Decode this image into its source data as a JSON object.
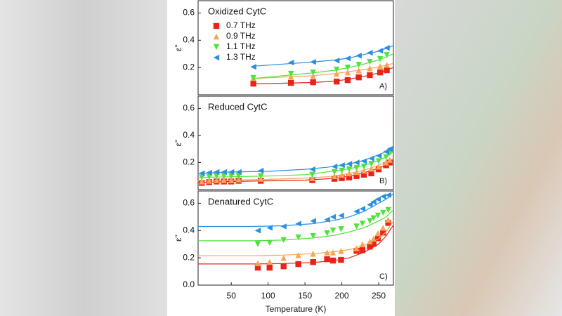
{
  "chart_data": [
    {
      "type": "scatter",
      "title": "Oxidized CytC",
      "panel_label": "A)",
      "ylabel": "ε''",
      "legend": true,
      "xlim": [
        5,
        270
      ],
      "ylim": [
        0,
        0.69
      ],
      "yticks": [
        0.2,
        0.4,
        0.6
      ],
      "x": [
        80,
        131,
        161,
        193,
        208,
        223,
        238,
        252,
        261
      ],
      "fit_x": [
        80,
        120,
        160,
        190,
        210,
        230,
        250,
        270
      ],
      "series": [
        {
          "name": "0.7 THz",
          "color": "#e8231a",
          "marker": "square",
          "values": [
            0.082,
            0.087,
            0.092,
            0.097,
            0.108,
            0.128,
            0.144,
            0.164,
            0.18
          ],
          "fit": [
            0.08,
            0.085,
            0.09,
            0.1,
            0.115,
            0.135,
            0.16,
            0.2
          ]
        },
        {
          "name": "0.9 THz",
          "color": "#f7a456",
          "marker": "up",
          "values": [
            0.123,
            0.133,
            0.138,
            0.154,
            0.164,
            0.179,
            0.195,
            0.21,
            0.22
          ],
          "fit": [
            0.12,
            0.13,
            0.14,
            0.155,
            0.17,
            0.185,
            0.205,
            0.23
          ]
        },
        {
          "name": "1.1 THz",
          "color": "#4fe33a",
          "marker": "down",
          "values": [
            0.123,
            0.154,
            0.164,
            0.185,
            0.2,
            0.22,
            0.241,
            0.262,
            0.292
          ],
          "fit": [
            0.12,
            0.14,
            0.16,
            0.18,
            0.2,
            0.225,
            0.255,
            0.3
          ]
        },
        {
          "name": "1.3 THz",
          "color": "#2b8fe0",
          "marker": "left",
          "values": [
            0.205,
            0.236,
            0.241,
            0.251,
            0.267,
            0.287,
            0.308,
            0.323,
            0.344
          ],
          "fit": [
            0.21,
            0.225,
            0.24,
            0.255,
            0.27,
            0.295,
            0.32,
            0.36
          ]
        }
      ]
    },
    {
      "type": "scatter",
      "title": "Reduced CytC",
      "panel_label": "B)",
      "ylabel": "ε''",
      "xlim": [
        5,
        270
      ],
      "ylim": [
        0,
        0.69
      ],
      "yticks": [
        0.2,
        0.4,
        0.6
      ],
      "x": [
        10,
        20,
        30,
        40,
        50,
        60,
        90,
        160,
        190,
        200,
        210,
        220,
        230,
        240,
        250,
        260,
        265
      ],
      "fit_x": [
        5,
        50,
        100,
        150,
        180,
        200,
        220,
        240,
        260,
        270
      ],
      "series": [
        {
          "color": "#e8231a",
          "marker": "square",
          "values": [
            0.05,
            0.055,
            0.06,
            0.06,
            0.06,
            0.065,
            0.065,
            0.07,
            0.08,
            0.085,
            0.09,
            0.1,
            0.11,
            0.12,
            0.15,
            0.18,
            0.2
          ],
          "fit": [
            0.05,
            0.06,
            0.065,
            0.07,
            0.08,
            0.09,
            0.11,
            0.14,
            0.18,
            0.21
          ]
        },
        {
          "color": "#f7a456",
          "marker": "up",
          "values": [
            0.06,
            0.065,
            0.07,
            0.07,
            0.07,
            0.075,
            0.08,
            0.085,
            0.1,
            0.11,
            0.12,
            0.13,
            0.14,
            0.155,
            0.17,
            0.2,
            0.22
          ],
          "fit": [
            0.065,
            0.07,
            0.075,
            0.085,
            0.095,
            0.11,
            0.13,
            0.16,
            0.2,
            0.23
          ]
        },
        {
          "color": "#4fe33a",
          "marker": "down",
          "values": [
            0.09,
            0.095,
            0.1,
            0.1,
            0.1,
            0.1,
            0.1,
            0.11,
            0.13,
            0.14,
            0.15,
            0.16,
            0.17,
            0.19,
            0.21,
            0.24,
            0.27
          ],
          "fit": [
            0.09,
            0.095,
            0.1,
            0.11,
            0.13,
            0.145,
            0.165,
            0.195,
            0.24,
            0.28
          ]
        },
        {
          "color": "#2b8fe0",
          "marker": "left",
          "values": [
            0.12,
            0.125,
            0.13,
            0.13,
            0.13,
            0.13,
            0.14,
            0.15,
            0.17,
            0.18,
            0.19,
            0.2,
            0.21,
            0.23,
            0.25,
            0.28,
            0.3
          ],
          "fit": [
            0.12,
            0.13,
            0.135,
            0.15,
            0.165,
            0.18,
            0.2,
            0.235,
            0.28,
            0.31
          ]
        }
      ]
    },
    {
      "type": "scatter",
      "title": "Denatured CytC",
      "panel_label": "C)",
      "ylabel": "ε''",
      "xlabel": "Temperature (K)",
      "xlim": [
        5,
        270
      ],
      "ylim": [
        0,
        0.69
      ],
      "yticks": [
        {
          "value": 0,
          "label": "0.0"
        },
        0.2,
        0.4,
        0.6
      ],
      "xticks": [
        50,
        100,
        150,
        200,
        250
      ],
      "x": [
        86,
        102,
        121,
        141,
        161,
        180,
        188,
        199,
        220,
        228,
        238,
        243,
        249,
        256,
        263
      ],
      "fit_x": [
        5,
        80,
        120,
        160,
        190,
        210,
        230,
        250,
        260,
        270
      ],
      "series": [
        {
          "color": "#e8231a",
          "marker": "square",
          "values": [
            0.128,
            0.128,
            0.138,
            0.154,
            0.169,
            0.19,
            0.18,
            0.185,
            0.251,
            0.256,
            0.282,
            0.303,
            0.344,
            0.385,
            0.456
          ],
          "fit": [
            0.155,
            0.155,
            0.158,
            0.165,
            0.18,
            0.2,
            0.24,
            0.3,
            0.36,
            0.44
          ]
        },
        {
          "color": "#f7a456",
          "marker": "up",
          "values": [
            0.16,
            0.17,
            0.2,
            0.22,
            0.23,
            0.24,
            0.24,
            0.25,
            0.27,
            0.3,
            0.32,
            0.34,
            0.38,
            0.42,
            0.48
          ],
          "fit": [
            0.215,
            0.215,
            0.22,
            0.23,
            0.245,
            0.26,
            0.29,
            0.34,
            0.39,
            0.47
          ]
        },
        {
          "color": "#4fe33a",
          "marker": "down",
          "values": [
            0.3,
            0.31,
            0.33,
            0.35,
            0.36,
            0.38,
            0.4,
            0.41,
            0.43,
            0.45,
            0.47,
            0.49,
            0.51,
            0.53,
            0.55
          ],
          "fit": [
            0.325,
            0.325,
            0.33,
            0.345,
            0.365,
            0.39,
            0.42,
            0.47,
            0.5,
            0.55
          ]
        },
        {
          "color": "#2b8fe0",
          "marker": "left",
          "values": [
            0.4,
            0.42,
            0.43,
            0.45,
            0.47,
            0.48,
            0.5,
            0.51,
            0.54,
            0.56,
            0.59,
            0.61,
            0.63,
            0.65,
            0.66
          ],
          "fit": [
            0.43,
            0.43,
            0.435,
            0.45,
            0.475,
            0.5,
            0.54,
            0.6,
            0.63,
            0.67
          ]
        }
      ]
    }
  ]
}
